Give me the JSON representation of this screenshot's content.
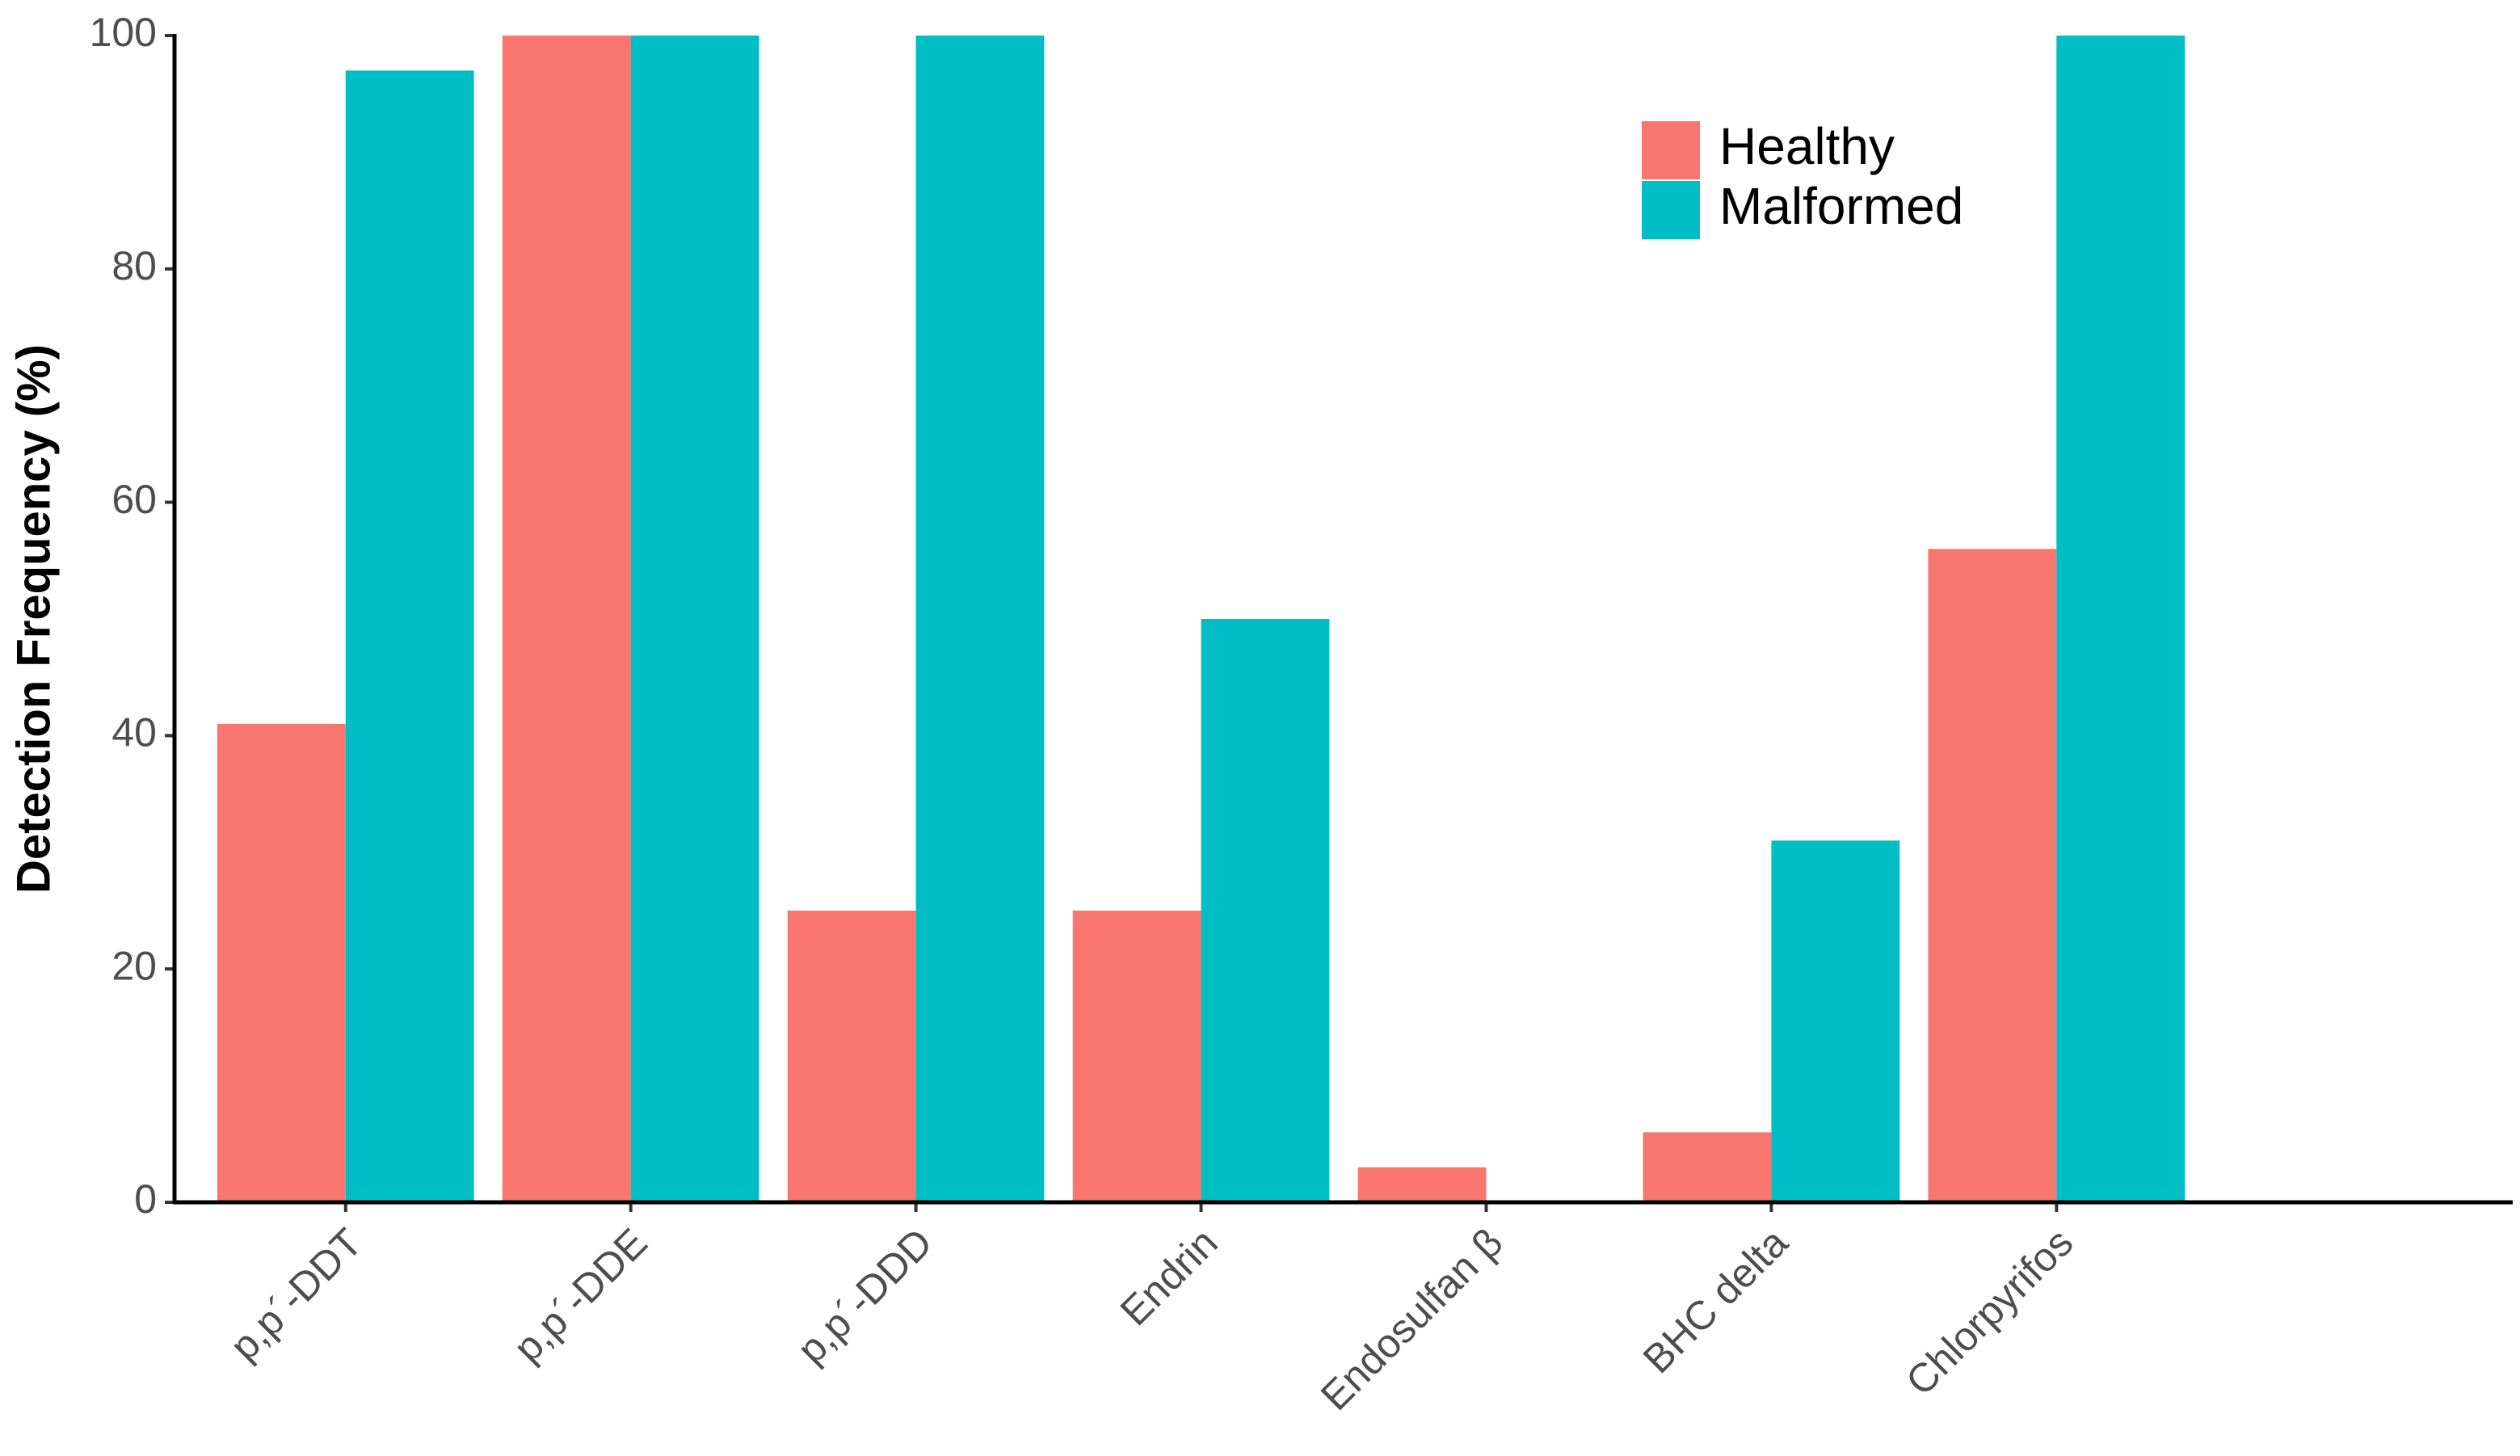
{
  "chart_data": {
    "type": "bar",
    "y_label": "Detection Frequency (%)",
    "categories": [
      "p,p´-DDT",
      "p,p´-DDE",
      "p,p´-DDD",
      "Endrin",
      "Endosulfan β",
      "BHC delta",
      "Chlorpyrifos"
    ],
    "series": [
      {
        "name": "Healthy",
        "color": "#f8766d",
        "values": [
          41,
          100,
          25,
          25,
          3,
          6,
          56
        ]
      },
      {
        "name": "Malformed",
        "color": "#00bfc4",
        "values": [
          97,
          100,
          100,
          50,
          0,
          31,
          100
        ]
      }
    ],
    "ylim": [
      0,
      100
    ],
    "yticks": [
      0,
      20,
      40,
      60,
      80,
      100
    ],
    "grid": false,
    "legend": "top-right"
  }
}
